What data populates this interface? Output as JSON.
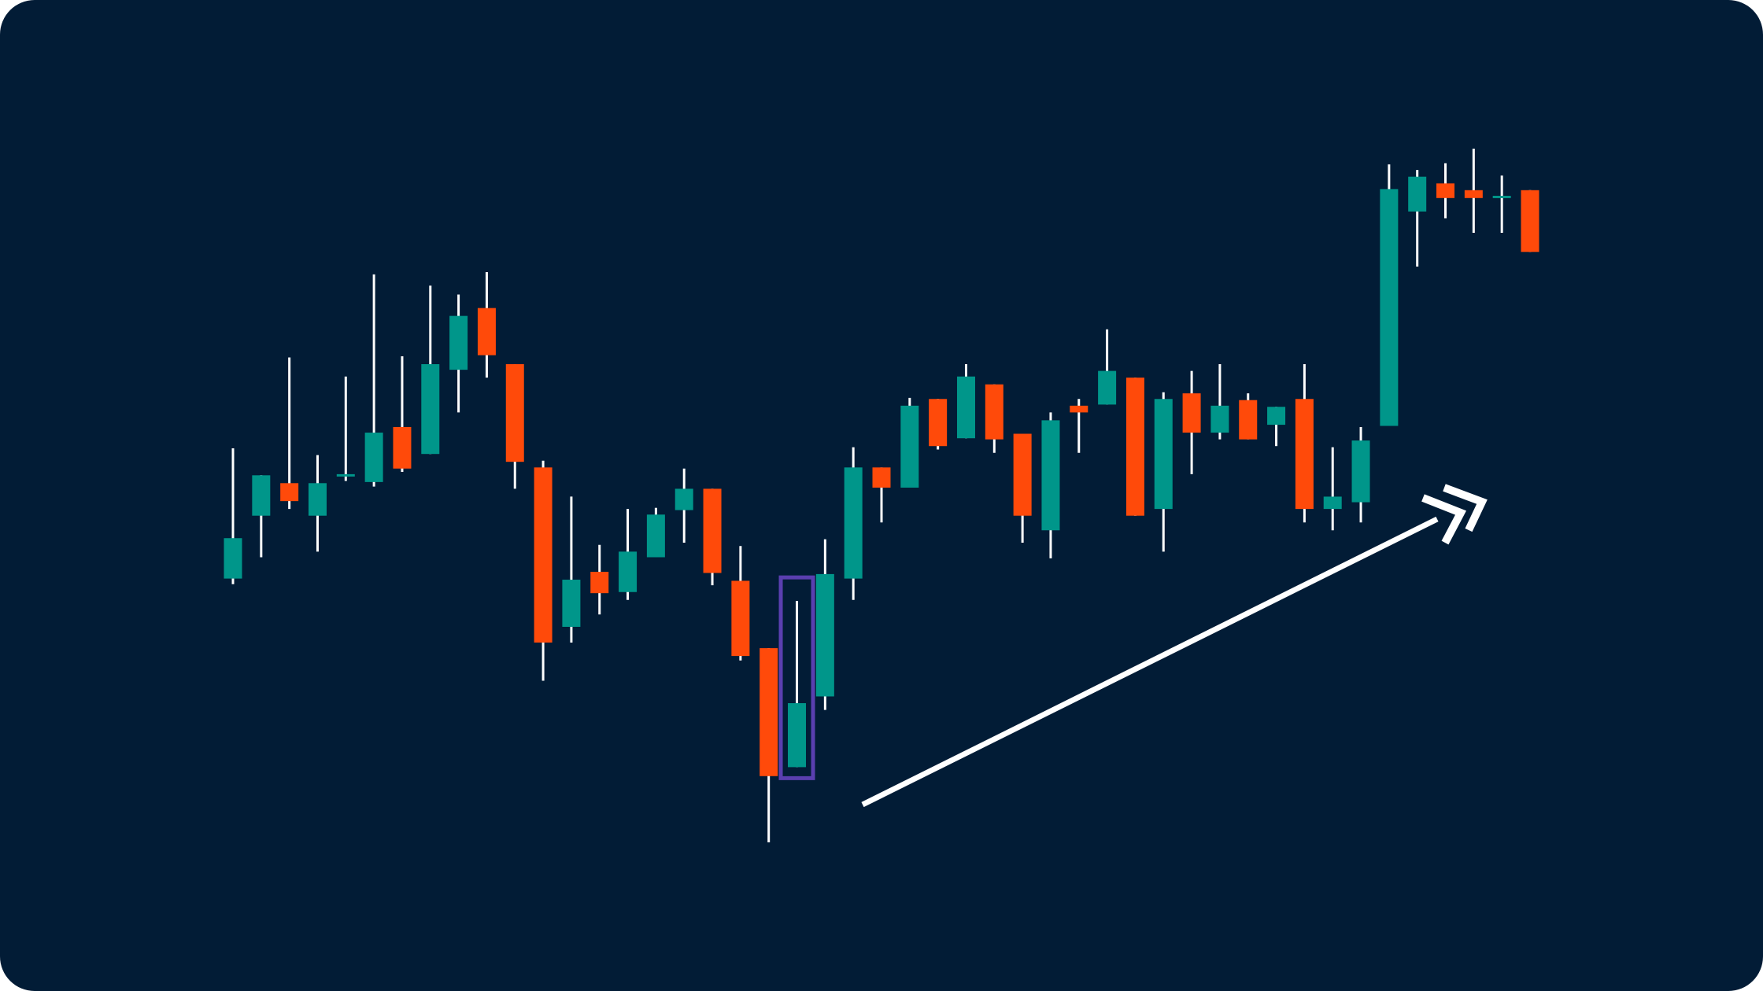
{
  "chart_data": {
    "type": "candlestick",
    "up_color": "#00968a",
    "down_color": "#ff4a0a",
    "highlight_color": "#5a3fb0",
    "highlight": 20,
    "series": [
      {
        "open": [
          367,
          423,
          452,
          423,
          459,
          453,
          502,
          478,
          553,
          608,
          558,
          466,
          324,
          373,
          355,
          386,
          428,
          447,
          365,
          305,
          199,
          262,
          367,
          466,
          448,
          527,
          492,
          540,
          496,
          410,
          521,
          522,
          546,
          429,
          532,
          497,
          526,
          504,
          527,
          429,
          435,
          503,
          694,
          719,
          713,
          706,
          713
        ],
        "high": [
          483,
          459,
          564,
          477,
          547,
          638,
          565,
          628,
          620,
          640,
          558,
          472,
          440,
          397,
          429,
          430,
          465,
          447,
          396,
          305,
          347,
          402,
          484,
          466,
          528,
          527,
          558,
          540,
          496,
          515,
          527,
          589,
          546,
          533,
          552,
          558,
          532,
          520,
          558,
          484,
          502,
          736,
          731,
          737,
          750,
          726,
          713
        ],
        "low": [
          362,
          386,
          429,
          391,
          454,
          449,
          462,
          478,
          515,
          546,
          447,
          276,
          310,
          335,
          348,
          386,
          399,
          361,
          294,
          132,
          199,
          250,
          348,
          417,
          448,
          482,
          492,
          479,
          399,
          385,
          479,
          522,
          423,
          391,
          460,
          491,
          491,
          485,
          417,
          410,
          417,
          503,
          645,
          688,
          675,
          675,
          658
        ],
        "close": [
          403,
          459,
          436,
          452,
          460,
          497,
          465,
          558,
          601,
          566,
          471,
          310,
          366,
          354,
          391,
          424,
          447,
          372,
          298,
          191,
          256,
          371,
          466,
          448,
          521,
          485,
          547,
          491,
          423,
          508,
          515,
          552,
          423,
          527,
          497,
          521,
          491,
          520,
          429,
          440,
          490,
          714,
          725,
          706,
          706,
          708,
          658
        ]
      }
    ]
  }
}
